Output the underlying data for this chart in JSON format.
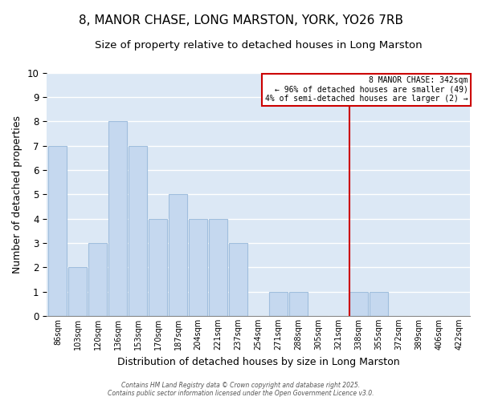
{
  "title": "8, MANOR CHASE, LONG MARSTON, YORK, YO26 7RB",
  "subtitle": "Size of property relative to detached houses in Long Marston",
  "xlabel": "Distribution of detached houses by size in Long Marston",
  "ylabel": "Number of detached properties",
  "categories": [
    "86sqm",
    "103sqm",
    "120sqm",
    "136sqm",
    "153sqm",
    "170sqm",
    "187sqm",
    "204sqm",
    "221sqm",
    "237sqm",
    "254sqm",
    "271sqm",
    "288sqm",
    "305sqm",
    "321sqm",
    "338sqm",
    "355sqm",
    "372sqm",
    "389sqm",
    "406sqm",
    "422sqm"
  ],
  "values": [
    7,
    2,
    3,
    8,
    7,
    4,
    5,
    4,
    4,
    3,
    0,
    1,
    1,
    0,
    0,
    1,
    1,
    0,
    0,
    0,
    0
  ],
  "bar_color": "#c5d8ef",
  "bar_edge_color": "#a0bedd",
  "plot_bg_color": "#dce8f5",
  "fig_bg_color": "#ffffff",
  "grid_color": "#ffffff",
  "vline_x_index": 15,
  "vline_color": "#cc0000",
  "annotation_title": "8 MANOR CHASE: 342sqm",
  "annotation_line1": "← 96% of detached houses are smaller (49)",
  "annotation_line2": "4% of semi-detached houses are larger (2) →",
  "annotation_color": "#cc0000",
  "ylim": [
    0,
    10
  ],
  "title_fontsize": 11,
  "subtitle_fontsize": 9.5,
  "xlabel_fontsize": 9,
  "ylabel_fontsize": 9,
  "footer": "Contains HM Land Registry data © Crown copyright and database right 2025.\nContains public sector information licensed under the Open Government Licence v3.0."
}
